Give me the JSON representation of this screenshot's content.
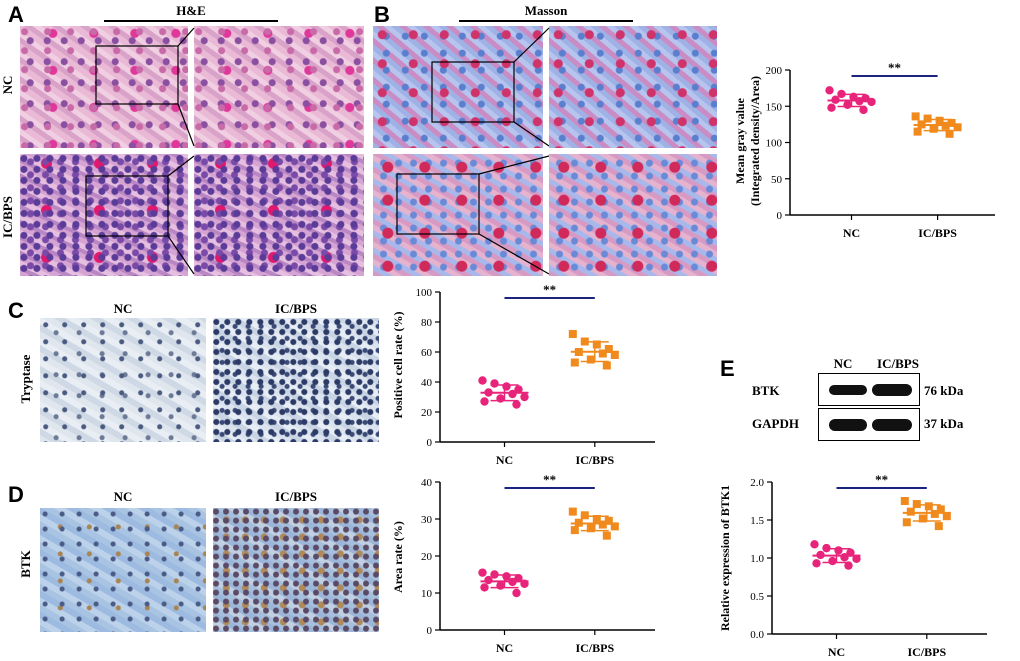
{
  "panels": {
    "A": {
      "letter": "A",
      "stain": "H&E",
      "rows": [
        "NC",
        "IC/BPS"
      ]
    },
    "B": {
      "letter": "B",
      "stain": "Masson",
      "rows": [
        "NC",
        "IC/BPS"
      ]
    },
    "C": {
      "letter": "C",
      "cols": [
        "NC",
        "IC/BPS"
      ],
      "row": "Tryptase"
    },
    "D": {
      "letter": "D",
      "cols": [
        "NC",
        "IC/BPS"
      ],
      "row": "BTK"
    },
    "E": {
      "letter": "E",
      "cols": [
        "NC",
        "IC/BPS"
      ],
      "blots": [
        {
          "name": "BTK",
          "size": "76 kDa"
        },
        {
          "name": "GAPDH",
          "size": "37 kDa"
        }
      ]
    }
  },
  "colors": {
    "nc": "#e8237a",
    "ic": "#f08a1c",
    "sig": "#1a237e"
  },
  "chart_data": [
    {
      "id": "masson",
      "type": "scatter",
      "categories": [
        "NC",
        "IC/BPS"
      ],
      "ylabel": "Mean gray value",
      "ylabel2": "(Integrated density/Area)",
      "ylim": [
        0,
        200
      ],
      "yticks": [
        0,
        50,
        100,
        150,
        200
      ],
      "significance": "**",
      "series": [
        {
          "values": [
            172,
            167,
            163,
            161,
            159,
            157,
            156,
            152,
            148,
            145
          ]
        },
        {
          "values": [
            136,
            133,
            130,
            127,
            125,
            123,
            121,
            119,
            115,
            112
          ]
        }
      ]
    },
    {
      "id": "tryptase",
      "type": "scatter",
      "categories": [
        "NC",
        "IC/BPS"
      ],
      "ylabel": "Positive cell rate (%)",
      "ylim": [
        0,
        100
      ],
      "yticks": [
        0,
        20,
        40,
        60,
        80,
        100
      ],
      "significance": "**",
      "series": [
        {
          "values": [
            41,
            39,
            37,
            35,
            33,
            32,
            30,
            29,
            27,
            25
          ]
        },
        {
          "values": [
            72,
            67,
            65,
            62,
            60,
            59,
            58,
            55,
            53,
            51
          ]
        }
      ]
    },
    {
      "id": "btk_area",
      "type": "scatter",
      "categories": [
        "NC",
        "IC/BPS"
      ],
      "ylabel": "Area rate (%)",
      "ylim": [
        0,
        40
      ],
      "yticks": [
        0,
        10,
        20,
        30,
        40
      ],
      "significance": "**",
      "series": [
        {
          "values": [
            15.5,
            15,
            14.5,
            14,
            13.5,
            13,
            12.5,
            12,
            11.5,
            10
          ]
        },
        {
          "values": [
            32,
            31,
            30,
            29.5,
            29,
            28.5,
            28,
            27.5,
            27,
            25.5
          ]
        }
      ]
    },
    {
      "id": "btk_expr",
      "type": "scatter",
      "categories": [
        "NC",
        "IC/BPS"
      ],
      "ylabel": "Relative expression of BTK1",
      "ylim": [
        0,
        2.0
      ],
      "yticks": [
        "0.0",
        "0.5",
        "1.0",
        "1.5",
        "2.0"
      ],
      "significance": "**",
      "series": [
        {
          "values": [
            1.18,
            1.13,
            1.1,
            1.07,
            1.04,
            1.01,
            0.99,
            0.96,
            0.93,
            0.9
          ]
        },
        {
          "values": [
            1.75,
            1.71,
            1.68,
            1.64,
            1.61,
            1.58,
            1.55,
            1.52,
            1.47,
            1.42
          ]
        }
      ]
    }
  ]
}
